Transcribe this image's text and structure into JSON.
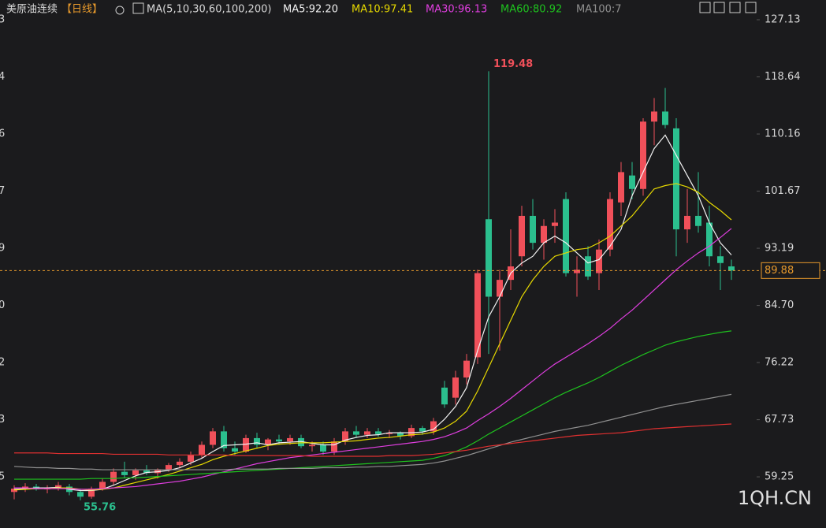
{
  "chart_data": {
    "type": "candlestick",
    "title": "美原油连续",
    "period": "【日线】",
    "ma_label": "MA(5,10,30,60,100,200)",
    "watermark": "1QH.CN",
    "up_color": "#f0505a",
    "down_color": "#2bbf8e",
    "ylim": [
      51.65,
      130.06
    ],
    "yticks": [
      127.13,
      118.64,
      110.16,
      101.67,
      93.19,
      {
        "value": 84.7,
        "label": "84.70"
      },
      76.22,
      67.73,
      59.25
    ],
    "left_labels": [
      "3",
      "4",
      "6",
      "7",
      "9",
      "0",
      "2",
      "3",
      "5"
    ],
    "last": 89.88,
    "max_label": 119.48,
    "min_label": 55.76,
    "ohlc": [
      [
        57.0,
        58.0,
        55.9,
        57.5
      ],
      [
        57.5,
        58.3,
        57.0,
        57.8
      ],
      [
        57.8,
        58.2,
        57.2,
        57.4
      ],
      [
        57.4,
        58.0,
        56.8,
        57.6
      ],
      [
        57.6,
        58.5,
        57.2,
        58.0
      ],
      [
        57.8,
        58.2,
        56.5,
        57.0
      ],
      [
        57.0,
        57.5,
        55.76,
        56.3
      ],
      [
        56.3,
        57.8,
        56.0,
        57.5
      ],
      [
        57.5,
        59.0,
        57.2,
        58.5
      ],
      [
        58.5,
        60.5,
        58.0,
        60.0
      ],
      [
        60.0,
        61.5,
        59.0,
        59.5
      ],
      [
        59.5,
        60.5,
        58.8,
        60.2
      ],
      [
        60.2,
        61.0,
        59.5,
        59.8
      ],
      [
        59.8,
        60.5,
        59.0,
        60.3
      ],
      [
        60.3,
        61.3,
        60.0,
        61.0
      ],
      [
        61.0,
        62.0,
        60.5,
        61.5
      ],
      [
        61.5,
        63.0,
        61.0,
        62.5
      ],
      [
        62.5,
        64.5,
        62.0,
        64.0
      ],
      [
        64.0,
        66.5,
        63.5,
        66.0
      ],
      [
        66.0,
        66.8,
        63.0,
        63.5
      ],
      [
        63.5,
        64.5,
        62.5,
        63.0
      ],
      [
        63.0,
        65.5,
        62.8,
        65.0
      ],
      [
        65.0,
        65.8,
        63.5,
        64.0
      ],
      [
        64.0,
        65.0,
        63.2,
        64.8
      ],
      [
        64.8,
        65.5,
        64.0,
        64.5
      ],
      [
        64.5,
        65.5,
        64.0,
        65.0
      ],
      [
        65.0,
        65.5,
        63.5,
        63.8
      ],
      [
        63.8,
        64.5,
        63.0,
        64.0
      ],
      [
        64.0,
        64.5,
        62.5,
        63.0
      ],
      [
        63.0,
        65.0,
        62.5,
        64.5
      ],
      [
        64.5,
        66.5,
        64.0,
        66.0
      ],
      [
        66.0,
        66.8,
        65.0,
        65.5
      ],
      [
        65.5,
        66.5,
        65.0,
        66.0
      ],
      [
        66.0,
        66.5,
        65.2,
        65.6
      ],
      [
        65.6,
        66.2,
        65.0,
        65.8
      ],
      [
        65.8,
        66.0,
        64.8,
        65.3
      ],
      [
        65.3,
        67.0,
        65.0,
        66.5
      ],
      [
        66.5,
        66.8,
        65.5,
        66.0
      ],
      [
        66.0,
        68.0,
        65.5,
        67.5
      ],
      [
        72.5,
        73.5,
        69.5,
        70.0
      ],
      [
        71.0,
        75.0,
        70.0,
        74.0
      ],
      [
        74.0,
        77.5,
        73.0,
        76.5
      ],
      [
        77.0,
        90.0,
        76.0,
        89.5
      ],
      [
        97.5,
        119.48,
        77.5,
        86.0
      ],
      [
        86.0,
        90.0,
        78.0,
        88.5
      ],
      [
        88.5,
        96.0,
        87.0,
        90.5
      ],
      [
        92.0,
        99.5,
        90.5,
        98.0
      ],
      [
        98.0,
        100.5,
        93.0,
        94.0
      ],
      [
        94.0,
        97.5,
        91.5,
        96.5
      ],
      [
        96.5,
        99.0,
        94.0,
        97.0
      ],
      [
        100.5,
        101.5,
        89.0,
        89.5
      ],
      [
        89.5,
        92.0,
        86.0,
        90.0
      ],
      [
        92.0,
        93.5,
        88.5,
        89.0
      ],
      [
        89.5,
        94.5,
        87.0,
        93.0
      ],
      [
        93.0,
        101.5,
        92.0,
        100.5
      ],
      [
        100.0,
        106.0,
        98.0,
        104.5
      ],
      [
        104.0,
        106.0,
        100.5,
        102.0
      ],
      [
        102.0,
        112.5,
        101.0,
        112.0
      ],
      [
        112.0,
        115.5,
        108.5,
        113.5
      ],
      [
        113.5,
        117.0,
        111.0,
        111.5
      ],
      [
        111.0,
        112.5,
        92.0,
        96.0
      ],
      [
        96.0,
        102.0,
        94.0,
        98.0
      ],
      [
        98.0,
        104.5,
        95.5,
        96.5
      ],
      [
        97.0,
        99.5,
        90.5,
        92.0
      ],
      [
        92.0,
        93.5,
        87.0,
        91.0
      ],
      [
        90.5,
        91.5,
        88.5,
        89.88
      ]
    ],
    "series": [
      {
        "name": "MA5:92.20",
        "color": "#f2f2f2",
        "values": [
          57.4,
          57.5,
          57.6,
          57.6,
          57.7,
          57.4,
          57.2,
          57.2,
          57.4,
          58.0,
          58.7,
          59.4,
          59.9,
          60.0,
          60.2,
          60.6,
          61.3,
          62.0,
          63.0,
          63.9,
          64.0,
          64.1,
          64.3,
          64.0,
          64.3,
          64.4,
          64.5,
          64.2,
          64.0,
          64.0,
          64.7,
          65.1,
          65.4,
          65.5,
          65.8,
          65.8,
          65.8,
          65.9,
          66.3,
          67.8,
          69.7,
          72.5,
          78.0,
          83.0,
          86.0,
          89.5,
          91.0,
          92.0,
          94.0,
          95.0,
          94.0,
          92.5,
          91.0,
          91.5,
          93.5,
          96.0,
          101.0,
          104.5,
          108.0,
          110.0,
          107.0,
          104.0,
          101.0,
          97.0,
          94.0,
          92.2
        ]
      },
      {
        "name": "MA10:97.41",
        "color": "#e6d800",
        "values": [
          57.3,
          57.4,
          57.5,
          57.5,
          57.6,
          57.6,
          57.4,
          57.3,
          57.4,
          57.6,
          58.0,
          58.4,
          58.8,
          59.2,
          59.6,
          60.1,
          60.6,
          61.1,
          61.8,
          62.3,
          62.7,
          63.1,
          63.5,
          63.9,
          64.1,
          64.2,
          64.3,
          64.3,
          64.3,
          64.4,
          64.5,
          64.6,
          64.8,
          65.0,
          65.1,
          65.3,
          65.5,
          65.6,
          65.9,
          66.5,
          67.5,
          69.0,
          72.0,
          75.5,
          79.0,
          82.5,
          86.0,
          88.5,
          90.5,
          92.0,
          92.5,
          93.0,
          93.2,
          94.0,
          95.0,
          96.5,
          98.0,
          100.0,
          102.0,
          102.5,
          102.8,
          102.3,
          101.5,
          100.0,
          98.8,
          97.41
        ]
      },
      {
        "name": "MA30:96.13",
        "color": "#e03ee0",
        "values": [
          57.6,
          57.6,
          57.5,
          57.5,
          57.5,
          57.5,
          57.4,
          57.4,
          57.5,
          57.6,
          57.7,
          57.8,
          58.0,
          58.2,
          58.4,
          58.6,
          58.9,
          59.2,
          59.6,
          60.0,
          60.4,
          60.8,
          61.2,
          61.5,
          61.8,
          62.1,
          62.3,
          62.5,
          62.7,
          62.9,
          63.1,
          63.3,
          63.5,
          63.7,
          63.9,
          64.1,
          64.3,
          64.5,
          64.8,
          65.2,
          65.8,
          66.5,
          67.6,
          68.6,
          69.7,
          70.9,
          72.2,
          73.5,
          74.8,
          76.0,
          77.0,
          78.0,
          79.0,
          80.1,
          81.3,
          82.7,
          84.0,
          85.5,
          87.0,
          88.5,
          90.0,
          91.3,
          92.5,
          93.5,
          94.8,
          96.13
        ]
      },
      {
        "name": "MA60:80.92",
        "color": "#1ec21e",
        "values": [
          58.9,
          58.9,
          58.9,
          58.9,
          58.9,
          58.9,
          58.9,
          59.0,
          59.0,
          59.0,
          59.1,
          59.1,
          59.2,
          59.3,
          59.4,
          59.5,
          59.6,
          59.7,
          59.8,
          59.9,
          60.0,
          60.1,
          60.2,
          60.3,
          60.4,
          60.5,
          60.6,
          60.7,
          60.8,
          60.9,
          61.0,
          61.1,
          61.2,
          61.3,
          61.4,
          61.5,
          61.6,
          61.7,
          62.0,
          62.4,
          63.0,
          63.7,
          64.6,
          65.6,
          66.5,
          67.4,
          68.3,
          69.2,
          70.1,
          71.0,
          71.8,
          72.5,
          73.2,
          74.0,
          74.9,
          75.8,
          76.6,
          77.4,
          78.1,
          78.8,
          79.3,
          79.7,
          80.1,
          80.4,
          80.7,
          80.92
        ]
      },
      {
        "name": "MA100:7",
        "color": "#909090",
        "values": [
          60.8,
          60.7,
          60.6,
          60.6,
          60.5,
          60.5,
          60.4,
          60.4,
          60.3,
          60.3,
          60.3,
          60.3,
          60.3,
          60.3,
          60.3,
          60.3,
          60.3,
          60.3,
          60.3,
          60.3,
          60.4,
          60.4,
          60.4,
          60.4,
          60.5,
          60.5,
          60.5,
          60.5,
          60.6,
          60.6,
          60.6,
          60.7,
          60.7,
          60.8,
          60.8,
          60.9,
          61.0,
          61.1,
          61.3,
          61.6,
          62.0,
          62.4,
          62.9,
          63.4,
          63.9,
          64.4,
          64.8,
          65.2,
          65.6,
          66.0,
          66.3,
          66.6,
          66.9,
          67.3,
          67.7,
          68.1,
          68.5,
          68.9,
          69.3,
          69.7,
          70.0,
          70.3,
          70.6,
          70.9,
          71.2,
          71.5
        ]
      },
      {
        "color": "#e03030",
        "values": [
          62.8,
          62.8,
          62.8,
          62.8,
          62.7,
          62.7,
          62.7,
          62.7,
          62.7,
          62.6,
          62.6,
          62.6,
          62.6,
          62.6,
          62.5,
          62.5,
          62.5,
          62.5,
          62.5,
          62.5,
          62.4,
          62.4,
          62.4,
          62.4,
          62.4,
          62.4,
          62.4,
          62.3,
          62.3,
          62.3,
          62.3,
          62.3,
          62.3,
          62.3,
          62.4,
          62.4,
          62.4,
          62.5,
          62.6,
          62.8,
          63.0,
          63.2,
          63.5,
          63.8,
          64.0,
          64.2,
          64.4,
          64.6,
          64.8,
          65.0,
          65.2,
          65.4,
          65.5,
          65.6,
          65.7,
          65.8,
          66.0,
          66.2,
          66.4,
          66.5,
          66.6,
          66.7,
          66.8,
          66.9,
          67.0,
          67.1
        ]
      }
    ]
  }
}
